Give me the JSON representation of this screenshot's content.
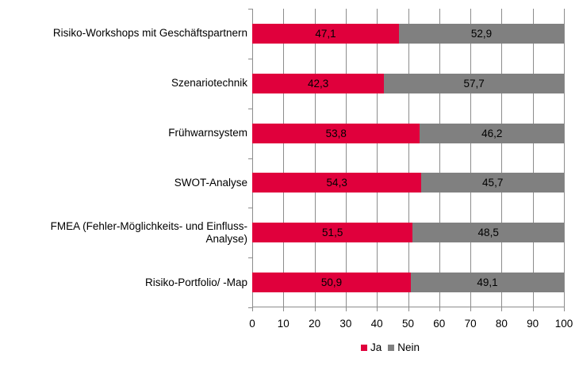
{
  "chart_data": {
    "type": "bar",
    "orientation": "horizontal",
    "stacked": true,
    "title": "",
    "xlabel": "",
    "ylabel": "",
    "xlim": [
      0,
      100
    ],
    "x_ticks": [
      "0",
      "10",
      "20",
      "30",
      "40",
      "50",
      "60",
      "70",
      "80",
      "90",
      "100"
    ],
    "grid": "vertical",
    "legend_position": "bottom",
    "categories": [
      "Risiko-Workshops mit Geschäftspartnern",
      "Szenariotechnik",
      "Frühwarnsystem",
      "SWOT-Analyse",
      "FMEA (Fehler-Möglichkeits- und Einfluss-Analyse)",
      "Risiko-Portfolio/ -Map"
    ],
    "series": [
      {
        "name": "Ja",
        "color": "#e0003c",
        "values": [
          47.1,
          42.3,
          53.8,
          54.3,
          51.5,
          50.9
        ],
        "labels": [
          "47,1",
          "42,3",
          "53,8",
          "54,3",
          "51,5",
          "50,9"
        ]
      },
      {
        "name": "Nein",
        "color": "#808080",
        "values": [
          52.9,
          57.7,
          46.2,
          45.7,
          48.5,
          49.1
        ],
        "labels": [
          "52,9",
          "57,7",
          "46,2",
          "45,7",
          "48,5",
          "49,1"
        ]
      }
    ]
  },
  "display_labels": [
    [
      "Risiko-Workshops mit Geschäftspartnern"
    ],
    [
      "Szenariotechnik"
    ],
    [
      "Frühwarnsystem"
    ],
    [
      "SWOT-Analyse"
    ],
    [
      "FMEA (Fehler-Möglichkeits- und Einfluss-",
      "Analyse)"
    ],
    [
      "Risiko-Portfolio/ -Map"
    ]
  ],
  "legend": [
    {
      "label": "Ja",
      "color": "#e0003c"
    },
    {
      "label": "Nein",
      "color": "#808080"
    }
  ]
}
